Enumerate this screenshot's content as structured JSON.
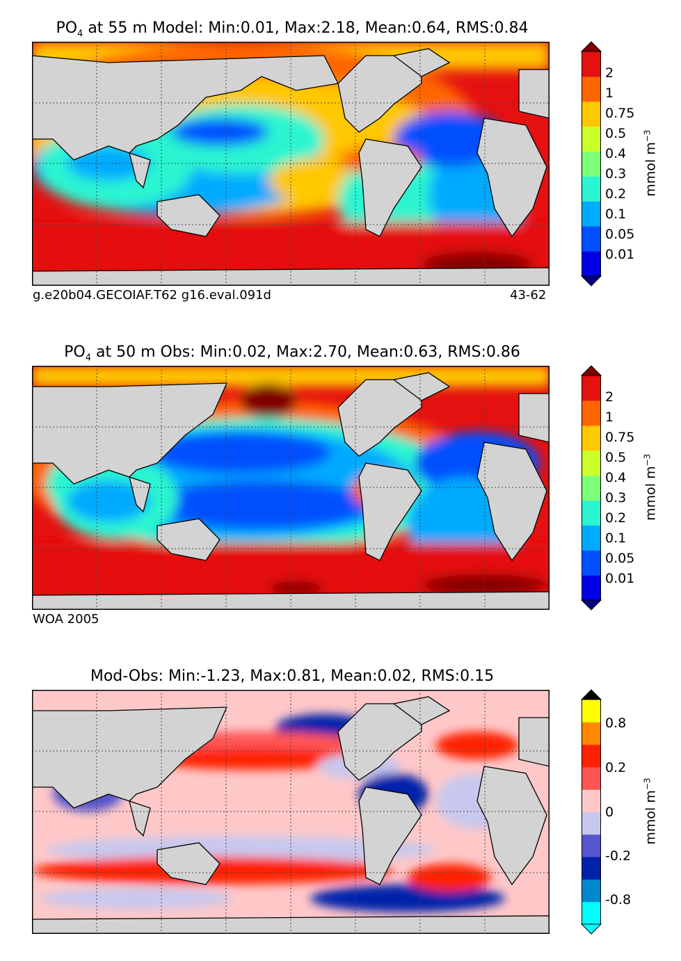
{
  "chart_data": [
    {
      "type": "heatmap",
      "title_species": "PO",
      "title_sub": "4",
      "title_rest": " at 55 m Model: Min:0.01, Max:2.18, Mean:0.64, RMS:0.84",
      "footer_left": "g.e20b04.GECOIAF.T62 g16.eval.091d",
      "footer_right": "43-62",
      "colorbar": {
        "unit_main": "mmol m",
        "unit_sup": "−3",
        "levels": [
          "0.01",
          "0.05",
          "0.1",
          "0.2",
          "0.3",
          "0.4",
          "0.5",
          "0.75",
          "1",
          "2"
        ],
        "colors": [
          "#00007f",
          "#0000e6",
          "#0050ff",
          "#00aaff",
          "#2af5d0",
          "#7dff7a",
          "#cbff2a",
          "#ffc800",
          "#ff6600",
          "#e51010",
          "#800000"
        ],
        "extend": "both"
      }
    },
    {
      "type": "heatmap",
      "title_species": "PO",
      "title_sub": "4",
      "title_rest": " at 50 m Obs: Min:0.02, Max:2.70, Mean:0.63, RMS:0.86",
      "footer_left": "WOA 2005",
      "colorbar": {
        "unit_main": "mmol m",
        "unit_sup": "−3",
        "levels": [
          "0.01",
          "0.05",
          "0.1",
          "0.2",
          "0.3",
          "0.4",
          "0.5",
          "0.75",
          "1",
          "2"
        ],
        "colors": [
          "#00007f",
          "#0000e6",
          "#0050ff",
          "#00aaff",
          "#2af5d0",
          "#7dff7a",
          "#cbff2a",
          "#ffc800",
          "#ff6600",
          "#e51010",
          "#800000"
        ],
        "extend": "both"
      }
    },
    {
      "type": "heatmap",
      "title_rest": "Mod-Obs: Min:-1.23, Max:0.81, Mean:0.02, RMS:0.15",
      "colorbar": {
        "unit_main": "mmol m",
        "unit_sup": "−3",
        "labels": [
          {
            "text": "-0.8",
            "boundary": 1
          },
          {
            "text": "-0.2",
            "boundary": 3
          },
          {
            "text": "0",
            "boundary": 5
          },
          {
            "text": "0.2",
            "boundary": 7
          },
          {
            "text": "0.8",
            "boundary": 9
          }
        ],
        "n_levels": 10,
        "colors": [
          "#00ffff",
          "#0088cc",
          "#0022aa",
          "#5555cc",
          "#c8c8ee",
          "#ffc8c8",
          "#ff5555",
          "#ff2200",
          "#ff8800",
          "#ffff00"
        ],
        "extend": "both"
      }
    }
  ]
}
